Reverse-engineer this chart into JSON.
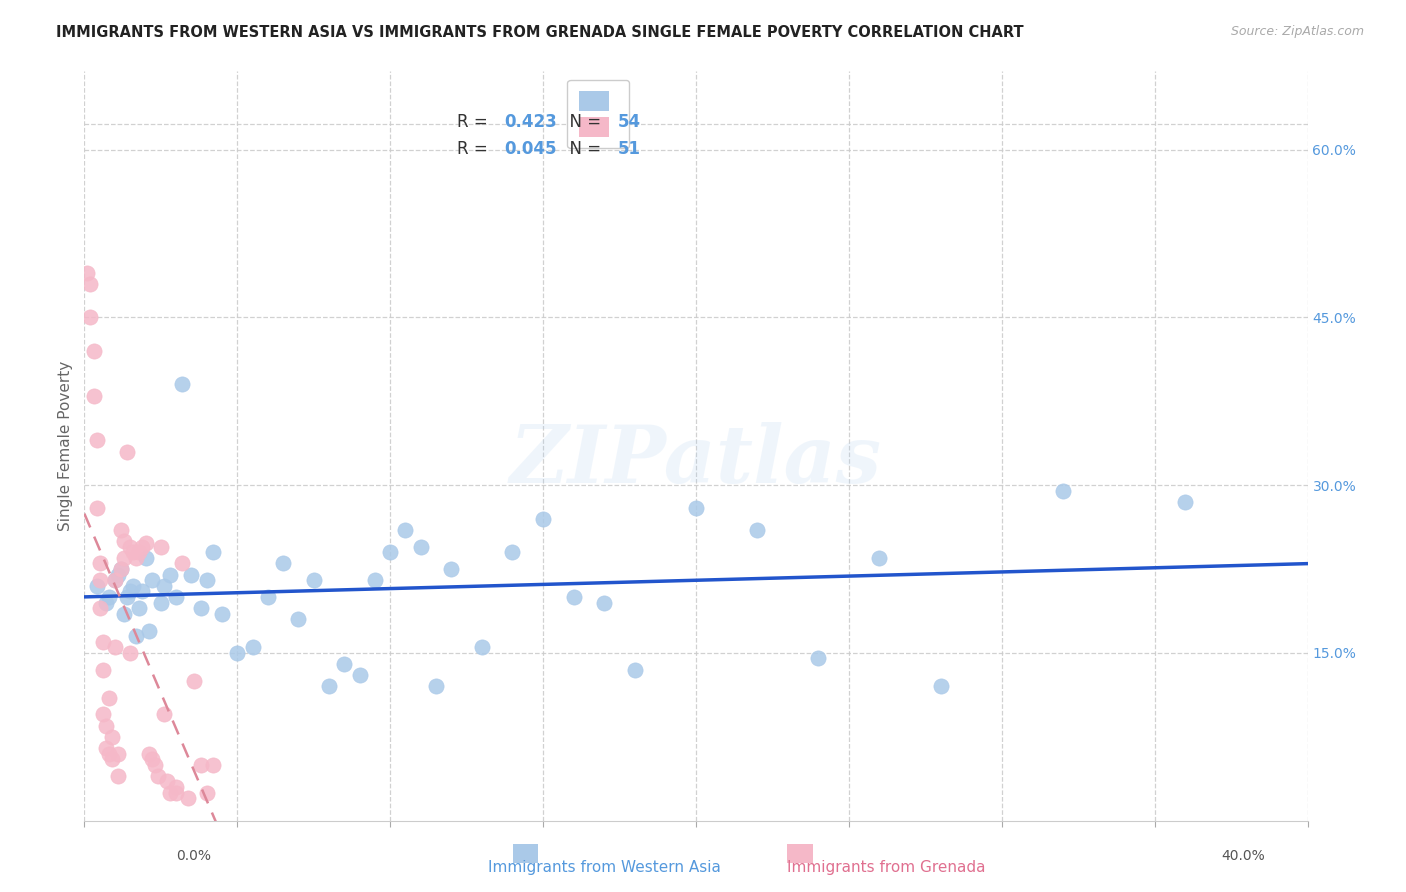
{
  "title": "IMMIGRANTS FROM WESTERN ASIA VS IMMIGRANTS FROM GRENADA SINGLE FEMALE POVERTY CORRELATION CHART",
  "source": "Source: ZipAtlas.com",
  "ylabel": "Single Female Poverty",
  "ylabel_right_ticks": [
    "60.0%",
    "45.0%",
    "30.0%",
    "15.0%"
  ],
  "ylabel_right_vals": [
    0.6,
    0.45,
    0.3,
    0.15
  ],
  "xmin": 0.0,
  "xmax": 0.4,
  "ymin": 0.0,
  "ymax": 0.67,
  "legend_r1": "R = 0.423",
  "legend_n1": "N = 54",
  "legend_r2": "R = 0.045",
  "legend_n2": "N = 51",
  "color_blue": "#aac9e8",
  "color_pink": "#f5b8c8",
  "color_blue_text": "#5599dd",
  "color_pink_text": "#e07090",
  "color_blue_line": "#2255cc",
  "color_pink_line": "#dd8899",
  "watermark": "ZIPatlas",
  "blue_x": [
    0.004,
    0.007,
    0.008,
    0.01,
    0.011,
    0.012,
    0.013,
    0.014,
    0.015,
    0.016,
    0.017,
    0.018,
    0.019,
    0.02,
    0.021,
    0.022,
    0.025,
    0.026,
    0.028,
    0.03,
    0.032,
    0.035,
    0.038,
    0.04,
    0.042,
    0.045,
    0.05,
    0.055,
    0.06,
    0.065,
    0.07,
    0.075,
    0.08,
    0.085,
    0.09,
    0.095,
    0.1,
    0.105,
    0.11,
    0.115,
    0.12,
    0.13,
    0.14,
    0.15,
    0.16,
    0.17,
    0.18,
    0.2,
    0.22,
    0.24,
    0.26,
    0.28,
    0.32,
    0.36
  ],
  "blue_y": [
    0.21,
    0.195,
    0.2,
    0.215,
    0.22,
    0.225,
    0.185,
    0.2,
    0.205,
    0.21,
    0.165,
    0.19,
    0.205,
    0.235,
    0.17,
    0.215,
    0.195,
    0.21,
    0.22,
    0.2,
    0.39,
    0.22,
    0.19,
    0.215,
    0.24,
    0.185,
    0.15,
    0.155,
    0.2,
    0.23,
    0.18,
    0.215,
    0.12,
    0.14,
    0.13,
    0.215,
    0.24,
    0.26,
    0.245,
    0.12,
    0.225,
    0.155,
    0.24,
    0.27,
    0.2,
    0.195,
    0.135,
    0.28,
    0.26,
    0.145,
    0.235,
    0.12,
    0.295,
    0.285
  ],
  "pink_x": [
    0.001,
    0.002,
    0.002,
    0.003,
    0.003,
    0.004,
    0.004,
    0.005,
    0.005,
    0.005,
    0.006,
    0.006,
    0.006,
    0.007,
    0.007,
    0.008,
    0.008,
    0.009,
    0.009,
    0.01,
    0.01,
    0.011,
    0.011,
    0.012,
    0.012,
    0.013,
    0.013,
    0.014,
    0.015,
    0.015,
    0.016,
    0.017,
    0.018,
    0.019,
    0.02,
    0.021,
    0.022,
    0.023,
    0.024,
    0.025,
    0.026,
    0.027,
    0.028,
    0.03,
    0.03,
    0.032,
    0.034,
    0.036,
    0.038,
    0.04,
    0.042
  ],
  "pink_y": [
    0.49,
    0.48,
    0.45,
    0.42,
    0.38,
    0.34,
    0.28,
    0.23,
    0.215,
    0.19,
    0.16,
    0.135,
    0.095,
    0.085,
    0.065,
    0.11,
    0.06,
    0.075,
    0.055,
    0.155,
    0.215,
    0.06,
    0.04,
    0.225,
    0.26,
    0.235,
    0.25,
    0.33,
    0.245,
    0.15,
    0.24,
    0.235,
    0.24,
    0.245,
    0.248,
    0.06,
    0.055,
    0.05,
    0.04,
    0.245,
    0.095,
    0.035,
    0.025,
    0.03,
    0.025,
    0.23,
    0.02,
    0.125,
    0.05,
    0.025,
    0.05
  ],
  "background_color": "#ffffff",
  "grid_color": "#cccccc"
}
